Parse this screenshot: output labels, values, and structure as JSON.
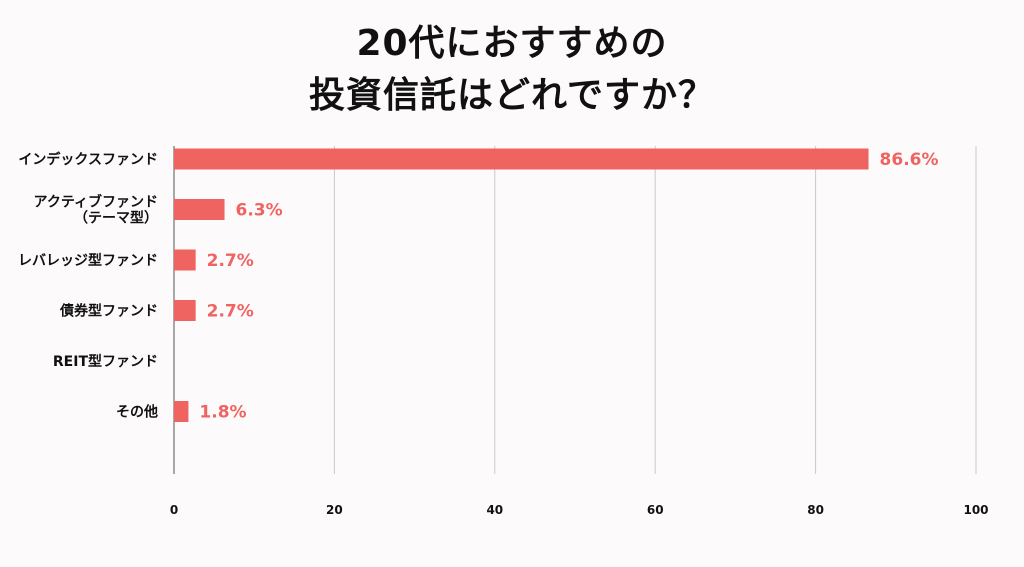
{
  "title_line1": "20代におすすめの",
  "title_line2": "投資信託はどれですか？",
  "chart_data": {
    "type": "bar",
    "orientation": "horizontal",
    "categories": [
      [
        "インデックスファンド"
      ],
      [
        "アクティブファンド",
        "（テーマ型）"
      ],
      [
        "レバレッジ型ファンド"
      ],
      [
        "債券型ファンド"
      ],
      [
        "REIT型ファンド"
      ],
      [
        "その他"
      ]
    ],
    "values": [
      86.6,
      6.3,
      2.7,
      2.7,
      0,
      1.8
    ],
    "value_labels": [
      "86.6%",
      "6.3%",
      "2.7%",
      "2.7%",
      "",
      "1.8%"
    ],
    "xlim": [
      0,
      100
    ],
    "xticks": [
      0,
      20,
      40,
      60,
      80,
      100
    ],
    "grid": true,
    "bar_color": "#ef6461",
    "label_color": "#ef6461"
  }
}
